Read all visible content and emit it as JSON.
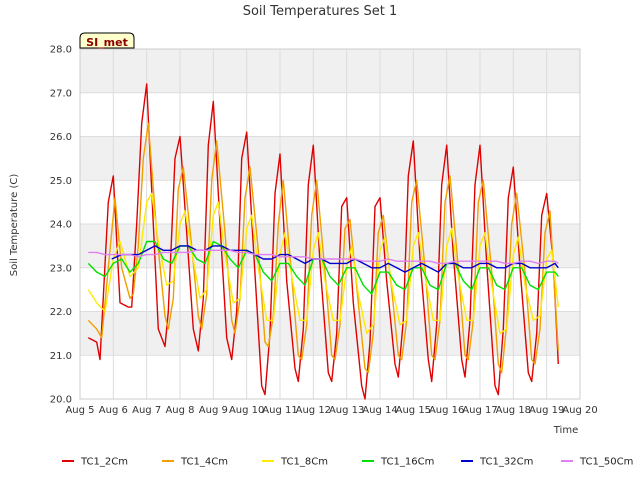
{
  "chart_data": {
    "type": "line",
    "title": "Soil Temperatures Set 1",
    "xlabel": "Time",
    "ylabel": "Soil Temperature (C)",
    "badge": "SI_met",
    "xlim": [
      5,
      20
    ],
    "ylim": [
      20.0,
      28.0
    ],
    "x_ticks": [
      {
        "value": 5,
        "label": "Aug 5"
      },
      {
        "value": 6,
        "label": "Aug 6"
      },
      {
        "value": 7,
        "label": "Aug 7"
      },
      {
        "value": 8,
        "label": "Aug 8"
      },
      {
        "value": 9,
        "label": "Aug 9"
      },
      {
        "value": 10,
        "label": "Aug 10"
      },
      {
        "value": 11,
        "label": "Aug 11"
      },
      {
        "value": 12,
        "label": "Aug 12"
      },
      {
        "value": 13,
        "label": "Aug 13"
      },
      {
        "value": 14,
        "label": "Aug 14"
      },
      {
        "value": 15,
        "label": "Aug 15"
      },
      {
        "value": 16,
        "label": "Aug 16"
      },
      {
        "value": 17,
        "label": "Aug 17"
      },
      {
        "value": 18,
        "label": "Aug 18"
      },
      {
        "value": 19,
        "label": "Aug 19"
      },
      {
        "value": 20,
        "label": "Aug 20"
      }
    ],
    "y_ticks": [
      {
        "value": 20,
        "label": "20.0"
      },
      {
        "value": 21,
        "label": "21.0"
      },
      {
        "value": 22,
        "label": "22.0"
      },
      {
        "value": 23,
        "label": "23.0"
      },
      {
        "value": 24,
        "label": "24.0"
      },
      {
        "value": 25,
        "label": "25.0"
      },
      {
        "value": 26,
        "label": "26.0"
      },
      {
        "value": 27,
        "label": "27.0"
      },
      {
        "value": 28,
        "label": "28.0"
      }
    ],
    "grid": true,
    "legend": "bottom",
    "series": [
      {
        "name": "TC1_2Cm",
        "color": "#e00000",
        "x": [
          5.25,
          5.5,
          5.6,
          5.85,
          6.0,
          6.2,
          6.45,
          6.55,
          6.7,
          6.85,
          7.0,
          7.2,
          7.35,
          7.55,
          7.65,
          7.85,
          8.0,
          8.2,
          8.4,
          8.55,
          8.7,
          8.85,
          9.0,
          9.2,
          9.4,
          9.55,
          9.7,
          9.85,
          10.0,
          10.2,
          10.45,
          10.55,
          10.7,
          10.85,
          11.0,
          11.2,
          11.45,
          11.55,
          11.7,
          11.85,
          12.0,
          12.2,
          12.45,
          12.55,
          12.7,
          12.85,
          13.0,
          13.2,
          13.45,
          13.55,
          13.7,
          13.85,
          14.0,
          14.2,
          14.45,
          14.55,
          14.7,
          14.85,
          15.0,
          15.2,
          15.45,
          15.55,
          15.7,
          15.85,
          16.0,
          16.2,
          16.45,
          16.55,
          16.7,
          16.85,
          17.0,
          17.2,
          17.45,
          17.55,
          17.7,
          17.85,
          18.0,
          18.2,
          18.45,
          18.55,
          18.7,
          18.85,
          19.0,
          19.2,
          19.35
        ],
        "y": [
          21.4,
          21.3,
          20.9,
          24.5,
          25.1,
          22.2,
          22.1,
          22.1,
          24.0,
          26.3,
          27.2,
          24.0,
          21.6,
          21.2,
          22.0,
          25.5,
          26.0,
          23.8,
          21.6,
          21.1,
          22.3,
          25.8,
          26.8,
          24.0,
          21.4,
          20.9,
          22.0,
          25.5,
          26.1,
          23.5,
          20.3,
          20.1,
          21.5,
          24.7,
          25.6,
          22.7,
          20.7,
          20.4,
          21.6,
          24.9,
          25.8,
          23.1,
          20.6,
          20.4,
          21.5,
          24.4,
          24.6,
          22.2,
          20.3,
          20.0,
          21.3,
          24.4,
          24.6,
          22.7,
          20.8,
          20.5,
          21.8,
          25.1,
          25.9,
          23.2,
          20.9,
          20.4,
          21.7,
          24.9,
          25.8,
          23.3,
          20.9,
          20.5,
          21.8,
          24.9,
          25.8,
          23.1,
          20.3,
          20.1,
          21.6,
          24.6,
          25.3,
          23.0,
          20.6,
          20.4,
          21.5,
          24.2,
          24.7,
          23.1,
          20.8
        ]
      },
      {
        "name": "TC1_4Cm",
        "color": "#f0a000",
        "x": [
          5.25,
          5.5,
          5.65,
          5.85,
          6.05,
          6.25,
          6.5,
          6.6,
          6.75,
          6.9,
          7.05,
          7.3,
          7.55,
          7.65,
          7.8,
          7.95,
          8.1,
          8.35,
          8.55,
          8.65,
          8.8,
          8.95,
          9.1,
          9.35,
          9.55,
          9.65,
          9.8,
          9.95,
          10.1,
          10.35,
          10.55,
          10.65,
          10.8,
          10.95,
          11.1,
          11.35,
          11.55,
          11.65,
          11.8,
          11.95,
          12.1,
          12.35,
          12.55,
          12.65,
          12.8,
          12.95,
          13.1,
          13.35,
          13.55,
          13.65,
          13.8,
          13.95,
          14.1,
          14.35,
          14.55,
          14.65,
          14.8,
          14.95,
          15.1,
          15.35,
          15.55,
          15.65,
          15.8,
          15.95,
          16.1,
          16.35,
          16.55,
          16.65,
          16.8,
          16.95,
          17.1,
          17.35,
          17.55,
          17.65,
          17.8,
          17.95,
          18.1,
          18.35,
          18.55,
          18.65,
          18.8,
          18.95,
          19.1,
          19.35
        ],
        "y": [
          21.8,
          21.6,
          21.4,
          23.0,
          24.6,
          23.0,
          22.3,
          22.4,
          23.5,
          25.5,
          26.3,
          23.8,
          21.9,
          21.6,
          22.3,
          24.8,
          25.3,
          23.5,
          21.9,
          21.6,
          22.4,
          25.0,
          25.9,
          23.8,
          21.8,
          21.5,
          22.3,
          24.6,
          25.3,
          23.4,
          21.3,
          21.2,
          21.9,
          24.0,
          25.0,
          22.8,
          21.0,
          20.9,
          21.7,
          24.2,
          25.0,
          22.9,
          21.0,
          20.9,
          21.7,
          23.9,
          24.1,
          22.2,
          20.7,
          20.6,
          21.5,
          23.8,
          24.2,
          22.5,
          21.0,
          20.9,
          21.8,
          24.5,
          25.0,
          23.0,
          21.0,
          20.9,
          21.8,
          24.5,
          25.1,
          23.0,
          21.0,
          20.9,
          21.8,
          24.5,
          25.0,
          22.9,
          20.8,
          20.6,
          21.7,
          24.0,
          24.7,
          22.9,
          20.9,
          20.8,
          21.6,
          23.8,
          24.3,
          21.1
        ]
      },
      {
        "name": "TC1_8Cm",
        "color": "#ffea00",
        "x": [
          5.25,
          5.5,
          5.75,
          6.0,
          6.2,
          6.5,
          6.75,
          7.0,
          7.15,
          7.35,
          7.6,
          7.8,
          8.0,
          8.15,
          8.35,
          8.6,
          8.8,
          9.0,
          9.15,
          9.35,
          9.6,
          9.8,
          10.0,
          10.15,
          10.35,
          10.6,
          10.8,
          11.0,
          11.15,
          11.35,
          11.6,
          11.8,
          12.0,
          12.15,
          12.35,
          12.6,
          12.8,
          13.0,
          13.15,
          13.35,
          13.6,
          13.8,
          14.0,
          14.15,
          14.35,
          14.6,
          14.8,
          15.0,
          15.15,
          15.35,
          15.6,
          15.8,
          16.0,
          16.15,
          16.35,
          16.6,
          16.8,
          17.0,
          17.15,
          17.35,
          17.6,
          17.8,
          18.0,
          18.15,
          18.35,
          18.6,
          18.8,
          19.0,
          19.15,
          19.35
        ],
        "y": [
          22.5,
          22.2,
          22.0,
          23.2,
          23.6,
          22.8,
          23.0,
          24.5,
          24.7,
          23.6,
          22.6,
          22.7,
          24.0,
          24.3,
          23.4,
          22.3,
          22.5,
          24.2,
          24.5,
          23.3,
          22.2,
          22.3,
          23.9,
          24.2,
          23.0,
          21.8,
          21.8,
          23.3,
          23.8,
          22.8,
          21.8,
          21.8,
          23.4,
          23.8,
          22.7,
          21.8,
          21.8,
          23.0,
          23.5,
          22.4,
          21.5,
          21.7,
          23.4,
          23.7,
          22.6,
          21.7,
          21.8,
          23.5,
          23.8,
          22.8,
          21.8,
          21.8,
          23.5,
          23.9,
          22.8,
          21.8,
          21.8,
          23.5,
          23.8,
          22.6,
          21.5,
          21.6,
          23.3,
          23.7,
          22.6,
          21.8,
          21.9,
          23.2,
          23.4,
          22.1
        ]
      },
      {
        "name": "TC1_16Cm",
        "color": "#00e000",
        "x": [
          5.25,
          5.5,
          5.75,
          6.0,
          6.25,
          6.5,
          6.75,
          7.0,
          7.25,
          7.5,
          7.75,
          8.0,
          8.25,
          8.5,
          8.75,
          9.0,
          9.25,
          9.5,
          9.75,
          10.0,
          10.25,
          10.5,
          10.75,
          11.0,
          11.25,
          11.5,
          11.75,
          12.0,
          12.25,
          12.5,
          12.75,
          13.0,
          13.25,
          13.5,
          13.75,
          14.0,
          14.25,
          14.5,
          14.75,
          15.0,
          15.25,
          15.5,
          15.75,
          16.0,
          16.25,
          16.5,
          16.75,
          17.0,
          17.25,
          17.5,
          17.75,
          18.0,
          18.25,
          18.5,
          18.75,
          19.0,
          19.25,
          19.35
        ],
        "y": [
          23.1,
          22.9,
          22.8,
          23.1,
          23.2,
          22.9,
          23.1,
          23.6,
          23.6,
          23.2,
          23.1,
          23.5,
          23.5,
          23.2,
          23.1,
          23.6,
          23.5,
          23.2,
          23.0,
          23.4,
          23.3,
          22.9,
          22.7,
          23.1,
          23.1,
          22.8,
          22.6,
          23.2,
          23.2,
          22.8,
          22.6,
          23.0,
          23.0,
          22.6,
          22.4,
          22.9,
          22.9,
          22.6,
          22.5,
          23.0,
          23.0,
          22.6,
          22.5,
          23.1,
          23.1,
          22.7,
          22.5,
          23.0,
          23.0,
          22.6,
          22.5,
          23.0,
          23.0,
          22.6,
          22.5,
          22.9,
          22.9,
          22.8
        ]
      },
      {
        "name": "TC1_32Cm",
        "color": "#0000cc",
        "x": [
          5.95,
          6.25,
          6.5,
          6.75,
          7.0,
          7.25,
          7.5,
          7.75,
          8.0,
          8.25,
          8.5,
          8.75,
          9.0,
          9.25,
          9.5,
          9.75,
          10.0,
          10.25,
          10.5,
          10.75,
          11.0,
          11.25,
          11.5,
          11.75,
          12.0,
          12.25,
          12.5,
          12.75,
          13.0,
          13.25,
          13.5,
          13.75,
          14.0,
          14.25,
          14.5,
          14.75,
          15.0,
          15.25,
          15.5,
          15.75,
          16.0,
          16.25,
          16.5,
          16.75,
          17.0,
          17.25,
          17.5,
          17.75,
          18.0,
          18.25,
          18.5,
          18.75,
          19.0,
          19.25,
          19.35
        ],
        "y": [
          23.2,
          23.3,
          23.3,
          23.3,
          23.4,
          23.5,
          23.4,
          23.4,
          23.5,
          23.5,
          23.4,
          23.4,
          23.5,
          23.5,
          23.4,
          23.4,
          23.4,
          23.3,
          23.2,
          23.2,
          23.3,
          23.3,
          23.2,
          23.1,
          23.2,
          23.2,
          23.1,
          23.1,
          23.1,
          23.2,
          23.1,
          23.0,
          23.0,
          23.1,
          23.0,
          22.9,
          23.0,
          23.1,
          23.0,
          22.9,
          23.1,
          23.1,
          23.0,
          23.0,
          23.1,
          23.1,
          23.0,
          23.0,
          23.1,
          23.1,
          23.0,
          23.0,
          23.0,
          23.1,
          23.0
        ]
      },
      {
        "name": "TC1_50Cm",
        "color": "#e080f0",
        "x": [
          5.25,
          5.5,
          5.75,
          6.0,
          6.25,
          6.5,
          6.75,
          7.0,
          7.25,
          7.5,
          7.75,
          8.0,
          8.25,
          8.5,
          8.75,
          9.0,
          9.25,
          9.5,
          9.75,
          10.0,
          10.25,
          10.5,
          10.75,
          11.0,
          11.25,
          11.5,
          11.75,
          12.0,
          12.25,
          12.5,
          12.75,
          13.0,
          13.25,
          13.5,
          13.75,
          14.0,
          14.25,
          14.5,
          14.75,
          15.0,
          15.25,
          15.5,
          15.75,
          16.0,
          16.25,
          16.5,
          16.75,
          17.0,
          17.25,
          17.5,
          17.75,
          18.0,
          18.25,
          18.5,
          18.75,
          19.0,
          19.25,
          19.35
        ],
        "y": [
          23.35,
          23.35,
          23.3,
          23.3,
          23.3,
          23.3,
          23.25,
          23.3,
          23.3,
          23.35,
          23.35,
          23.35,
          23.35,
          23.4,
          23.4,
          23.4,
          23.4,
          23.4,
          23.35,
          23.35,
          23.3,
          23.3,
          23.3,
          23.25,
          23.25,
          23.25,
          23.25,
          23.2,
          23.2,
          23.2,
          23.2,
          23.2,
          23.2,
          23.15,
          23.15,
          23.15,
          23.2,
          23.15,
          23.15,
          23.15,
          23.15,
          23.15,
          23.1,
          23.1,
          23.15,
          23.15,
          23.15,
          23.15,
          23.15,
          23.15,
          23.1,
          23.1,
          23.15,
          23.15,
          23.1,
          23.15,
          23.15,
          23.1
        ]
      }
    ]
  }
}
